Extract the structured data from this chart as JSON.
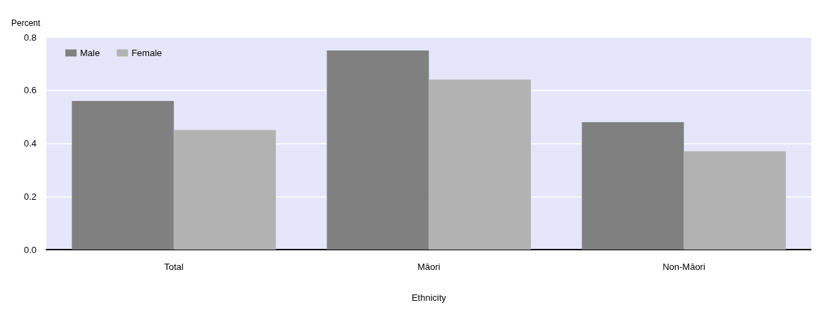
{
  "chart_data": {
    "type": "bar",
    "ylabel": "Percent",
    "xlabel": "Ethnicity",
    "categories": [
      "Total",
      "Māori",
      "Non-Māori"
    ],
    "series": [
      {
        "name": "Male",
        "color": "#808080",
        "values": [
          0.56,
          0.75,
          0.48
        ]
      },
      {
        "name": "Female",
        "color": "#b2b2b2",
        "values": [
          0.45,
          0.64,
          0.37
        ]
      }
    ],
    "ylim": [
      0,
      0.8
    ],
    "yticks": [
      {
        "value": 0,
        "label": "0.0"
      },
      {
        "value": 0.2,
        "label": "0.2"
      },
      {
        "value": 0.4,
        "label": "0.4"
      },
      {
        "value": 0.6,
        "label": "0.6"
      },
      {
        "value": 0.8,
        "label": "0.8"
      }
    ],
    "grid": "y",
    "legend": "top left"
  }
}
